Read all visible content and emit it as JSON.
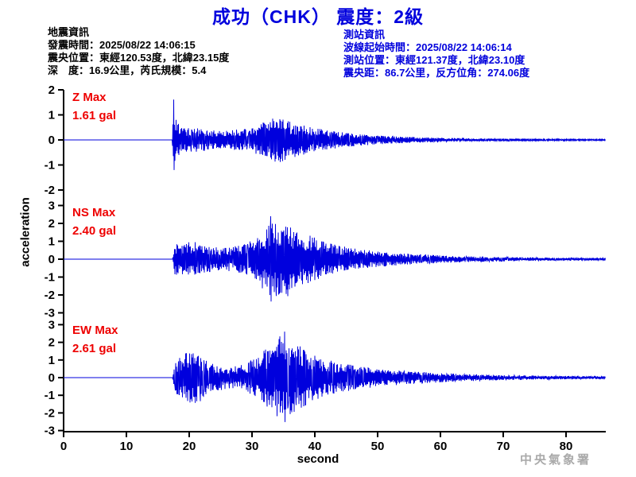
{
  "title": {
    "text": "成功（CHK） 震度：2級"
  },
  "quake_info": {
    "heading": "地震資訊",
    "lines": [
      "發震時間：2025/08/22 14:06:15",
      "震央位置：東經120.53度，北緯23.15度",
      "深　度：16.9公里，芮氏規模：5.4"
    ]
  },
  "station_info": {
    "heading": "測站資訊",
    "lines": [
      "波線起始時間：2025/08/22 14:06:14",
      "測站位置：東經121.37度，北緯23.10度",
      "震央距：86.7公里，反方位角：274.06度"
    ]
  },
  "agency": "中央氣象署",
  "colors": {
    "accent_blue": "#0000dd",
    "wave_blue": "#0000dd",
    "label_red": "#ee0000",
    "axis_black": "#000000",
    "agency_gray": "#aaaaaa"
  },
  "chart_data": {
    "type": "line",
    "kind": "seismogram-3-channel",
    "title": "成功（CHK） 震度：2級",
    "xlabel": "second",
    "ylabel": "acceleration",
    "x_range": [
      0,
      86.3
    ],
    "x_ticks": [
      0,
      10,
      20,
      30,
      40,
      50,
      60,
      70,
      80
    ],
    "signal_start_s": 17.4,
    "grid": false,
    "series": [
      {
        "name": "Z",
        "label": "Z Max",
        "value_label": "1.61 gal",
        "max_gal": 1.61,
        "peak_time_s": 17.6,
        "ylim": [
          -2,
          2
        ],
        "y_ticks": [
          2,
          1,
          0,
          -1,
          -2
        ],
        "envelope": [
          [
            0,
            0
          ],
          [
            17.3,
            0
          ],
          [
            17.55,
            1.61
          ],
          [
            18.0,
            0.75
          ],
          [
            18.6,
            0.55
          ],
          [
            20,
            0.5
          ],
          [
            23,
            0.42
          ],
          [
            26,
            0.38
          ],
          [
            29,
            0.45
          ],
          [
            31,
            0.6
          ],
          [
            33,
            0.85
          ],
          [
            35,
            0.9
          ],
          [
            36,
            0.75
          ],
          [
            38,
            0.6
          ],
          [
            40,
            0.48
          ],
          [
            43,
            0.35
          ],
          [
            46,
            0.26
          ],
          [
            50,
            0.18
          ],
          [
            54,
            0.13
          ],
          [
            58,
            0.1
          ],
          [
            63,
            0.07
          ],
          [
            70,
            0.05
          ],
          [
            78,
            0.035
          ],
          [
            86.3,
            0.025
          ]
        ]
      },
      {
        "name": "NS",
        "label": "NS Max",
        "value_label": "2.40 gal",
        "max_gal": 2.4,
        "peak_time_s": 33.0,
        "ylim": [
          -3,
          3
        ],
        "y_ticks": [
          3,
          2,
          1,
          0,
          -1,
          -2,
          -3
        ],
        "envelope": [
          [
            0,
            0
          ],
          [
            17.35,
            0
          ],
          [
            17.7,
            0.85
          ],
          [
            19,
            0.95
          ],
          [
            21,
            1.0
          ],
          [
            23,
            0.7
          ],
          [
            25,
            0.65
          ],
          [
            27,
            0.7
          ],
          [
            29,
            0.85
          ],
          [
            31,
            1.3
          ],
          [
            33,
            2.4
          ],
          [
            34.5,
            1.9
          ],
          [
            35.5,
            2.15
          ],
          [
            36.5,
            1.8
          ],
          [
            38,
            1.5
          ],
          [
            40,
            1.2
          ],
          [
            42,
            0.95
          ],
          [
            44,
            0.75
          ],
          [
            47,
            0.55
          ],
          [
            50,
            0.45
          ],
          [
            53,
            0.35
          ],
          [
            57,
            0.27
          ],
          [
            61,
            0.2
          ],
          [
            66,
            0.15
          ],
          [
            72,
            0.11
          ],
          [
            79,
            0.08
          ],
          [
            86.3,
            0.07
          ]
        ]
      },
      {
        "name": "EW",
        "label": "EW Max",
        "value_label": "2.61 gal",
        "max_gal": 2.61,
        "peak_time_s": 35.2,
        "ylim": [
          -3,
          3
        ],
        "y_ticks": [
          3,
          2,
          1,
          0,
          -1,
          -2,
          -3
        ],
        "envelope": [
          [
            0,
            0
          ],
          [
            17.35,
            0
          ],
          [
            17.7,
            0.9
          ],
          [
            19,
            1.3
          ],
          [
            20,
            1.5
          ],
          [
            21.5,
            1.45
          ],
          [
            23,
            0.85
          ],
          [
            25,
            0.7
          ],
          [
            27,
            0.65
          ],
          [
            29,
            0.8
          ],
          [
            31,
            1.2
          ],
          [
            33,
            1.9
          ],
          [
            35.2,
            2.61
          ],
          [
            36.5,
            2.0
          ],
          [
            38,
            1.7
          ],
          [
            40,
            1.3
          ],
          [
            42,
            1.05
          ],
          [
            44,
            0.85
          ],
          [
            47,
            0.65
          ],
          [
            50,
            0.52
          ],
          [
            53,
            0.42
          ],
          [
            57,
            0.32
          ],
          [
            61,
            0.25
          ],
          [
            66,
            0.18
          ],
          [
            72,
            0.13
          ],
          [
            79,
            0.1
          ],
          [
            86.3,
            0.08
          ]
        ]
      }
    ]
  }
}
